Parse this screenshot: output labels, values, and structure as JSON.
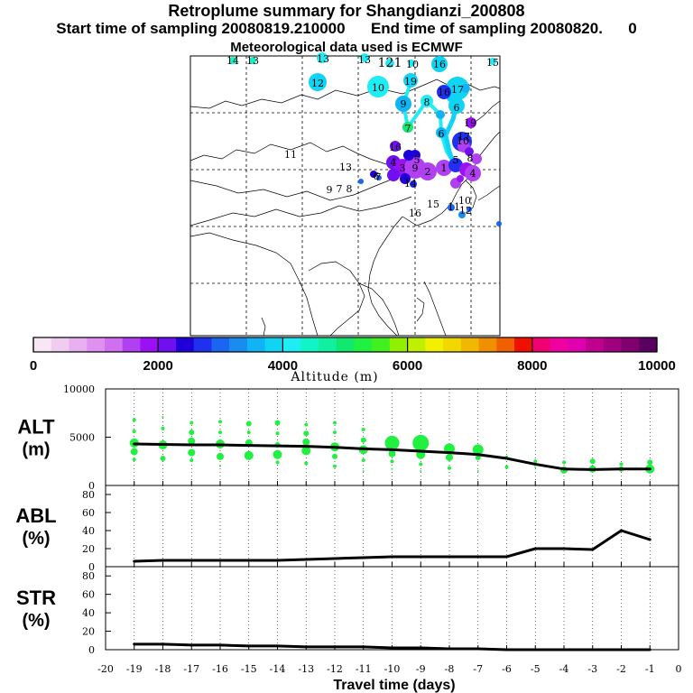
{
  "header": {
    "title": "Retroplume summary for Shangdianzi_200808",
    "start_label": "Start time of sampling 20080819.210000",
    "end_label": "End time of sampling 20080820.",
    "end_suffix": "0",
    "met_label": "Meteorological data used is ECMWF"
  },
  "colorbar": {
    "xlabel": "Altitude (m)",
    "ticks": [
      "0",
      "2000",
      "4000",
      "6000",
      "8000",
      "10000"
    ],
    "colors": [
      "#f6e6f6",
      "#f0cdf0",
      "#e8b0f0",
      "#e090f0",
      "#d070f0",
      "#b040f0",
      "#9b10f4",
      "#7010f0",
      "#2000d8",
      "#2030f0",
      "#1a66f0",
      "#1a8cf0",
      "#10b4f4",
      "#10d4f4",
      "#20ecf4",
      "#10f4c8",
      "#10f0a0",
      "#10e870",
      "#20f040",
      "#40f020",
      "#90f000",
      "#c0f000",
      "#f0f000",
      "#f0d800",
      "#f0b800",
      "#f09000",
      "#f06000",
      "#f01000",
      "#f00070",
      "#f000a0",
      "#e000b0",
      "#c00090",
      "#a00080",
      "#800070",
      "#5a0060"
    ]
  },
  "map": {
    "labels": [
      "14",
      "13",
      "13",
      "13",
      "121",
      "10",
      "16",
      "15",
      "12",
      "10",
      "19",
      "8",
      "16",
      "17",
      "9",
      "6",
      "7",
      "6",
      "10",
      "11",
      "13",
      "16",
      "5",
      "4",
      "3",
      "2",
      "1",
      "14",
      "15",
      "9",
      "8",
      "7",
      "16",
      "11",
      "12",
      "10",
      "19",
      "17",
      "4",
      "6",
      "7",
      "5",
      "8",
      "9"
    ]
  },
  "chart_data": [
    {
      "type": "scatter+line",
      "panel": "ALT",
      "ylabel": "ALT\n(m)",
      "ylabel_lines": [
        "ALT",
        "(m)"
      ],
      "ylim": [
        0,
        10000
      ],
      "yticks": [
        "0",
        "5000",
        "10000"
      ],
      "x": [
        -19,
        -18,
        -17,
        -16,
        -15,
        -14,
        -13,
        -12,
        -11,
        -10,
        -9,
        -8,
        -7,
        -6,
        -5,
        -4,
        -3,
        -2,
        -1
      ],
      "median_line": [
        4300,
        4250,
        4200,
        4200,
        4150,
        4100,
        4050,
        3950,
        3800,
        3700,
        3550,
        3400,
        3200,
        2800,
        2200,
        1700,
        1650,
        1700,
        1700
      ],
      "plume_points": [
        {
          "x": -19,
          "points": [
            [
              6800,
              2
            ],
            [
              5600,
              2
            ],
            [
              4400,
              5
            ],
            [
              3500,
              4
            ],
            [
              2700,
              2
            ]
          ]
        },
        {
          "x": -18,
          "points": [
            [
              7100,
              1
            ],
            [
              5900,
              2
            ],
            [
              4200,
              5
            ],
            [
              2800,
              3
            ]
          ]
        },
        {
          "x": -17,
          "points": [
            [
              6500,
              2
            ],
            [
              5500,
              3
            ],
            [
              4600,
              4
            ],
            [
              3400,
              4
            ],
            [
              2600,
              2
            ]
          ]
        },
        {
          "x": -16,
          "points": [
            [
              6600,
              2
            ],
            [
              5500,
              2
            ],
            [
              4300,
              5
            ],
            [
              3000,
              4
            ],
            [
              2000,
              1
            ]
          ]
        },
        {
          "x": -15,
          "points": [
            [
              6400,
              3
            ],
            [
              5500,
              2
            ],
            [
              4400,
              4
            ],
            [
              3100,
              5
            ]
          ]
        },
        {
          "x": -14,
          "points": [
            [
              6500,
              3
            ],
            [
              5400,
              2
            ],
            [
              4200,
              3
            ],
            [
              3200,
              5
            ],
            [
              2400,
              2
            ]
          ]
        },
        {
          "x": -13,
          "points": [
            [
              6300,
              2
            ],
            [
              5400,
              3
            ],
            [
              4500,
              4
            ],
            [
              3600,
              5
            ],
            [
              2300,
              2
            ]
          ]
        },
        {
          "x": -12,
          "points": [
            [
              6500,
              2
            ],
            [
              5500,
              2
            ],
            [
              4000,
              5
            ],
            [
              3000,
              3
            ],
            [
              2000,
              2
            ]
          ]
        },
        {
          "x": -11,
          "points": [
            [
              5800,
              2
            ],
            [
              4700,
              3
            ],
            [
              3700,
              5
            ],
            [
              2600,
              2
            ],
            [
              1500,
              1
            ]
          ]
        },
        {
          "x": -10,
          "points": [
            [
              4400,
              8
            ],
            [
              3300,
              4
            ],
            [
              2500,
              2
            ],
            [
              1700,
              1
            ]
          ]
        },
        {
          "x": -9,
          "points": [
            [
              4400,
              9
            ],
            [
              3200,
              5
            ],
            [
              2200,
              2
            ],
            [
              1500,
              1
            ]
          ]
        },
        {
          "x": -8,
          "points": [
            [
              3800,
              6
            ],
            [
              2900,
              4
            ],
            [
              1800,
              2
            ]
          ]
        },
        {
          "x": -7,
          "points": [
            [
              3700,
              6
            ],
            [
              2900,
              3
            ],
            [
              1500,
              1
            ]
          ]
        },
        {
          "x": -6,
          "points": [
            [
              2900,
              2
            ],
            [
              1900,
              2
            ]
          ]
        },
        {
          "x": -5,
          "points": [
            [
              2500,
              2
            ],
            [
              1900,
              1
            ]
          ]
        },
        {
          "x": -4,
          "points": [
            [
              2400,
              2
            ],
            [
              1600,
              4
            ]
          ]
        },
        {
          "x": -3,
          "points": [
            [
              2500,
              3
            ],
            [
              1700,
              4
            ]
          ]
        },
        {
          "x": -2,
          "points": [
            [
              2200,
              2
            ],
            [
              1700,
              3
            ]
          ]
        },
        {
          "x": -1,
          "points": [
            [
              2400,
              3
            ],
            [
              1700,
              5
            ]
          ]
        }
      ],
      "point_color": "#20f040"
    },
    {
      "type": "line",
      "panel": "ABL",
      "ylabel": "ABL\n(%)",
      "ylabel_lines": [
        "ABL",
        "(%)"
      ],
      "ylim": [
        0,
        90
      ],
      "yticks": [
        "0",
        "20",
        "40",
        "60",
        "80"
      ],
      "x": [
        -19,
        -18,
        -17,
        -16,
        -15,
        -14,
        -13,
        -12,
        -11,
        -10,
        -9,
        -8,
        -7,
        -6,
        -5,
        -4,
        -3,
        -2,
        -1
      ],
      "values": [
        6,
        7,
        7,
        7,
        7,
        7,
        8,
        9,
        10,
        11,
        11,
        11,
        11,
        11,
        20,
        20,
        19,
        40,
        30
      ]
    },
    {
      "type": "line",
      "panel": "STR",
      "ylabel": "STR\n(%)",
      "ylabel_lines": [
        "STR",
        "(%)"
      ],
      "ylim": [
        0,
        90
      ],
      "yticks": [
        "0",
        "20",
        "40",
        "60",
        "80"
      ],
      "x": [
        -19,
        -18,
        -17,
        -16,
        -15,
        -14,
        -13,
        -12,
        -11,
        -10,
        -9,
        -8,
        -7,
        -6,
        -5,
        -4,
        -3,
        -2,
        -1
      ],
      "values": [
        6,
        6,
        5,
        5,
        4,
        4,
        3,
        3,
        3,
        2,
        2,
        1,
        1,
        0,
        0,
        0,
        0,
        0,
        0
      ]
    },
    {
      "type": "axis",
      "xlabel": "Travel time (days)",
      "xticks": [
        "-20",
        "-19",
        "-18",
        "-17",
        "-16",
        "-15",
        "-14",
        "-13",
        "-12",
        "-11",
        "-10",
        "-9",
        "-8",
        "-7",
        "-6",
        "-5",
        "-4",
        "-3",
        "-2",
        "-1",
        "0"
      ],
      "xlim": [
        -20,
        0
      ]
    }
  ]
}
